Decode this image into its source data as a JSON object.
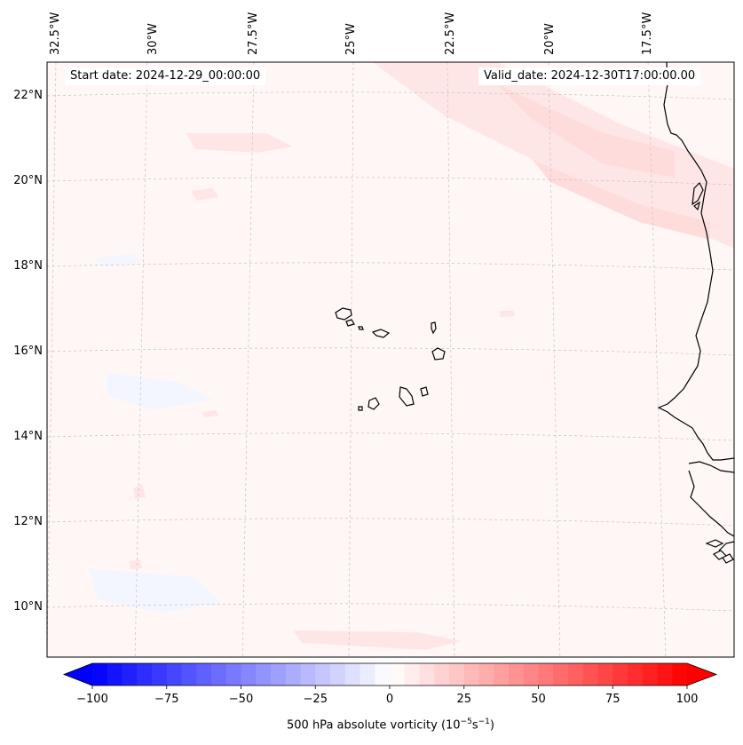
{
  "map": {
    "start_label": "Start date: 2024-12-29_00:00:00",
    "valid_label": "Valid_date: 2024-12-30T17:00:00.00",
    "lon_labels": [
      "32.5°W",
      "30°W",
      "27.5°W",
      "25°W",
      "22.5°W",
      "20°W",
      "17.5°W"
    ],
    "lat_labels": [
      "22°N",
      "20°N",
      "18°N",
      "16°N",
      "14°N",
      "12°N",
      "10°N"
    ],
    "field_colors": {
      "background": "#fff6f6",
      "weak_positive": "#ffe6e6",
      "moderate_positive": "#ffdcdc",
      "weak_negative": "#f4f6ff"
    }
  },
  "colorbar": {
    "ticks": [
      "−100",
      "−75",
      "−50",
      "−25",
      "0",
      "25",
      "50",
      "75",
      "100"
    ],
    "label_prefix": "500 hPa absolute vorticity (10",
    "label_exp1": "−5",
    "label_mid": "s",
    "label_exp2": "−1",
    "label_suffix": ")",
    "min": -100,
    "max": 100,
    "low_color": "#0000ff",
    "mid_color": "#ffffff",
    "high_color": "#ff0000"
  }
}
